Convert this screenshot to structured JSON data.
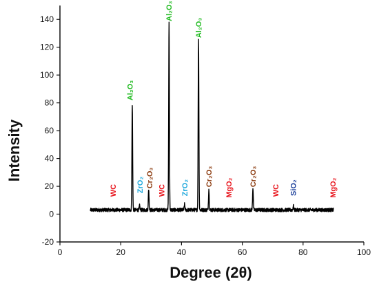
{
  "chart_data": {
    "type": "line",
    "xlabel": "Degree (2θ)",
    "ylabel": "Intensity",
    "xlim": [
      0,
      100
    ],
    "ylim": [
      -20,
      150
    ],
    "x_ticks": [
      0,
      20,
      40,
      60,
      80,
      100
    ],
    "y_ticks": [
      -20,
      0,
      20,
      40,
      60,
      80,
      100,
      120,
      140
    ],
    "grid": false,
    "legend": "none",
    "line_color": "#000000",
    "baseline": 3,
    "noise": 1.3,
    "x_range": [
      10,
      90
    ],
    "peaks": [
      {
        "x": 23.8,
        "y": 78
      },
      {
        "x": 26.2,
        "y": 6
      },
      {
        "x": 29.2,
        "y": 18
      },
      {
        "x": 35.9,
        "y": 137
      },
      {
        "x": 41.0,
        "y": 7
      },
      {
        "x": 45.6,
        "y": 126
      },
      {
        "x": 49.0,
        "y": 18
      },
      {
        "x": 63.5,
        "y": 19
      },
      {
        "x": 76.8,
        "y": 6
      }
    ],
    "annotations": [
      {
        "text": "WC",
        "x": 17.5,
        "y": 17,
        "color": "#e8141c"
      },
      {
        "text": "Al₂O₃",
        "x": 23.0,
        "y": 89,
        "color": "#22bb22"
      },
      {
        "text": "ZrO₂",
        "x": 26.3,
        "y": 21,
        "color": "#22aadd"
      },
      {
        "text": "Cr₂O₃",
        "x": 29.5,
        "y": 26,
        "color": "#8b3a0e"
      },
      {
        "text": "WC",
        "x": 33.5,
        "y": 17,
        "color": "#e8141c"
      },
      {
        "text": "Al₂O₃",
        "x": 35.8,
        "y": 146,
        "color": "#22bb22"
      },
      {
        "text": "ZrO₂",
        "x": 41.0,
        "y": 19,
        "color": "#22aadd"
      },
      {
        "text": "Al₂O₃",
        "x": 45.6,
        "y": 134,
        "color": "#22bb22"
      },
      {
        "text": "Cr₂O₃",
        "x": 49.0,
        "y": 27,
        "color": "#8b3a0e"
      },
      {
        "text": "MgO₂",
        "x": 55.5,
        "y": 19,
        "color": "#e8141c"
      },
      {
        "text": "Cr₂O₃",
        "x": 63.5,
        "y": 27,
        "color": "#8b3a0e"
      },
      {
        "text": "WC",
        "x": 71.0,
        "y": 17,
        "color": "#e8141c"
      },
      {
        "text": "SiO₂",
        "x": 76.8,
        "y": 19,
        "color": "#1a3e9a"
      },
      {
        "text": "MgO₂",
        "x": 89.8,
        "y": 19,
        "color": "#e8141c"
      }
    ]
  }
}
